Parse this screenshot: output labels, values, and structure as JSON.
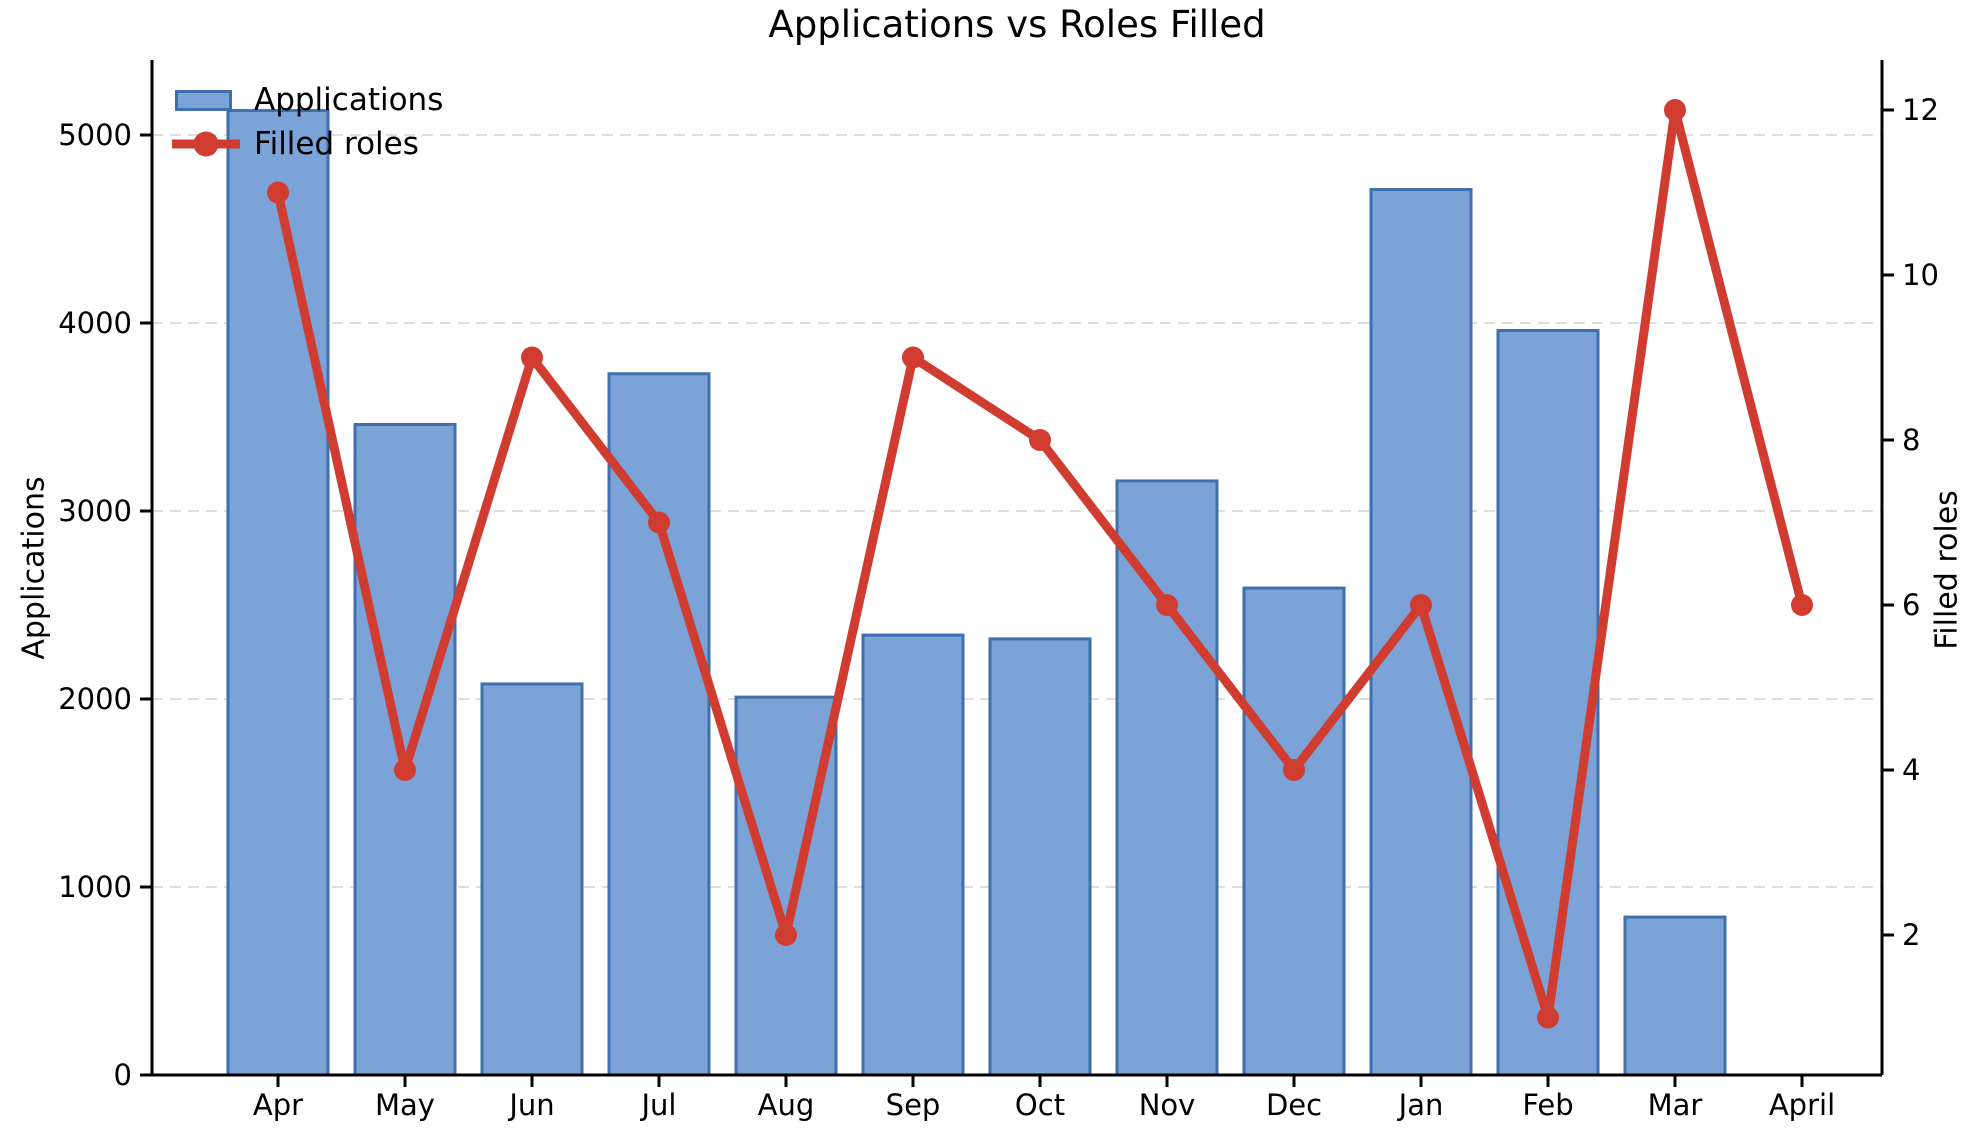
{
  "chart_data": {
    "type": "bar-line-combo",
    "title": "Applications vs Roles Filled",
    "categories": [
      "Apr",
      "May",
      "Jun",
      "Jul",
      "Aug",
      "Sep",
      "Oct",
      "Nov",
      "Dec",
      "Jan",
      "Feb",
      "Mar",
      "April"
    ],
    "series": [
      {
        "name": "Applications",
        "type": "bar",
        "axis": "left",
        "values": [
          5130,
          3460,
          2080,
          3730,
          2010,
          2340,
          2320,
          3160,
          2590,
          4710,
          3960,
          840,
          0
        ],
        "fill_color": "#7ba3d7",
        "edge_color": "#3f6fad"
      },
      {
        "name": "Filled roles",
        "type": "line",
        "axis": "right",
        "values": [
          11,
          4,
          9,
          7,
          2,
          9,
          8,
          6,
          4,
          6,
          1,
          12,
          6
        ],
        "color": "#d13c30",
        "marker": "circle"
      }
    ],
    "ylabel_left": "Applications",
    "ylabel_right": "Filled roles",
    "yticks_left": [
      0,
      1000,
      2000,
      3000,
      4000,
      5000
    ],
    "yticks_right": [
      2,
      4,
      6,
      8,
      10,
      12
    ],
    "ylim_left": [
      0,
      5400
    ],
    "ylim_right": [
      0.3,
      12.6
    ],
    "grid": {
      "axis": "y",
      "line_style": "dashed",
      "color": "#dedede"
    },
    "legend": {
      "position": "upper left",
      "frame": false
    },
    "colors": {
      "background": "#ffffff",
      "text": "#000000",
      "spine": "#000000"
    }
  }
}
